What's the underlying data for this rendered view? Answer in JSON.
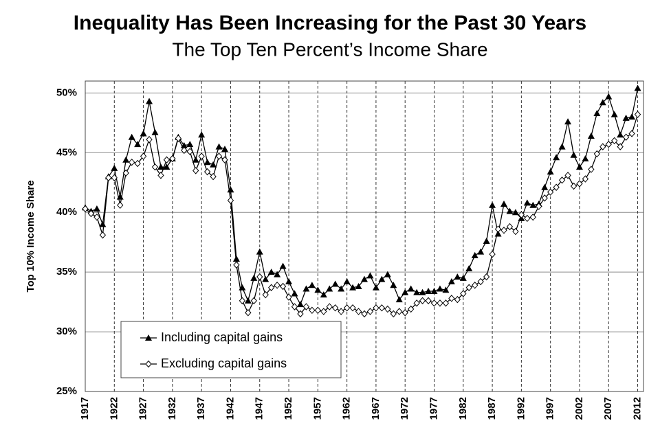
{
  "chart_data": {
    "type": "line",
    "title": "Inequality Has Been Increasing for the Past 30 Years",
    "subtitle": "The Top Ten Percent’s Income Share",
    "y_label": "Top 10% Income Share",
    "x": [
      1917,
      1918,
      1919,
      1920,
      1921,
      1922,
      1923,
      1924,
      1925,
      1926,
      1927,
      1928,
      1929,
      1930,
      1931,
      1932,
      1933,
      1934,
      1935,
      1936,
      1937,
      1938,
      1939,
      1940,
      1941,
      1942,
      1943,
      1944,
      1945,
      1946,
      1947,
      1948,
      1949,
      1950,
      1951,
      1952,
      1953,
      1954,
      1955,
      1956,
      1957,
      1958,
      1959,
      1960,
      1961,
      1962,
      1963,
      1964,
      1965,
      1966,
      1967,
      1968,
      1969,
      1970,
      1971,
      1972,
      1973,
      1974,
      1975,
      1976,
      1977,
      1978,
      1979,
      1980,
      1981,
      1982,
      1983,
      1984,
      1985,
      1986,
      1987,
      1988,
      1989,
      1990,
      1991,
      1992,
      1993,
      1994,
      1995,
      1996,
      1997,
      1998,
      1999,
      2000,
      2001,
      2002,
      2003,
      2004,
      2005,
      2006,
      2007,
      2008,
      2009,
      2010,
      2011,
      2012
    ],
    "series": [
      {
        "name": "Including capital gains",
        "color": "#000000",
        "marker": "triangle",
        "values": [
          40.4,
          40.1,
          40.3,
          39.0,
          43.0,
          43.7,
          41.3,
          44.4,
          46.3,
          45.7,
          46.6,
          49.3,
          46.7,
          43.8,
          43.8,
          44.5,
          46.3,
          45.6,
          45.7,
          44.4,
          46.5,
          44.2,
          44.0,
          45.5,
          45.3,
          41.9,
          36.1,
          33.7,
          32.6,
          34.5,
          36.7,
          34.4,
          35.0,
          34.8,
          35.5,
          34.2,
          33.2,
          32.3,
          33.6,
          33.9,
          33.5,
          33.1,
          33.6,
          34.0,
          33.6,
          34.2,
          33.7,
          33.8,
          34.4,
          34.7,
          33.7,
          34.4,
          34.8,
          33.9,
          32.7,
          33.3,
          33.6,
          33.3,
          33.3,
          33.4,
          33.4,
          33.6,
          33.5,
          34.2,
          34.6,
          34.5,
          35.3,
          36.4,
          36.7,
          37.6,
          40.6,
          38.2,
          40.7,
          40.1,
          40.0,
          39.5,
          40.8,
          40.6,
          40.7,
          42.1,
          43.4,
          44.6,
          45.5,
          47.6,
          44.8,
          43.8,
          44.5,
          46.4,
          48.3,
          49.2,
          49.7,
          48.2,
          46.5,
          47.9,
          48.0,
          50.4
        ]
      },
      {
        "name": "Excluding capital gains",
        "color": "#000000",
        "marker": "diamond",
        "values": [
          40.3,
          39.9,
          39.6,
          38.1,
          42.9,
          42.9,
          40.6,
          43.3,
          44.2,
          44.1,
          44.7,
          46.1,
          43.8,
          43.1,
          44.4,
          44.5,
          46.2,
          45.2,
          45.1,
          43.5,
          44.7,
          43.4,
          43.0,
          44.7,
          44.4,
          41.0,
          35.6,
          32.6,
          31.6,
          32.6,
          34.6,
          33.1,
          33.7,
          33.9,
          33.8,
          32.9,
          32.1,
          31.5,
          32.1,
          31.8,
          31.8,
          31.7,
          32.1,
          32.0,
          31.7,
          32.0,
          32.0,
          31.7,
          31.5,
          31.7,
          32.0,
          32.0,
          31.9,
          31.5,
          31.7,
          31.6,
          31.9,
          32.4,
          32.6,
          32.6,
          32.4,
          32.4,
          32.4,
          32.8,
          32.7,
          33.2,
          33.7,
          33.9,
          34.2,
          34.6,
          36.5,
          38.6,
          38.5,
          38.8,
          38.4,
          39.8,
          39.5,
          39.6,
          40.5,
          41.2,
          41.7,
          42.1,
          42.7,
          43.1,
          42.2,
          42.4,
          42.8,
          43.6,
          44.9,
          45.5,
          45.7,
          46.0,
          45.5,
          46.3,
          46.6,
          48.2
        ]
      }
    ],
    "xlim": [
      1917,
      2013
    ],
    "xticks": [
      1917,
      1922,
      1927,
      1932,
      1937,
      1942,
      1947,
      1952,
      1957,
      1962,
      1967,
      1972,
      1977,
      1982,
      1987,
      1992,
      1997,
      2002,
      2007,
      2012
    ],
    "ylim": [
      25,
      51
    ],
    "yticks": [
      {
        "value": 25,
        "label": "25%"
      },
      {
        "value": 30,
        "label": "30%"
      },
      {
        "value": 35,
        "label": "35%"
      },
      {
        "value": 40,
        "label": "40%"
      },
      {
        "value": 45,
        "label": "45%"
      },
      {
        "value": 50,
        "label": "50%"
      }
    ],
    "grid": true,
    "legend": "lower left"
  }
}
